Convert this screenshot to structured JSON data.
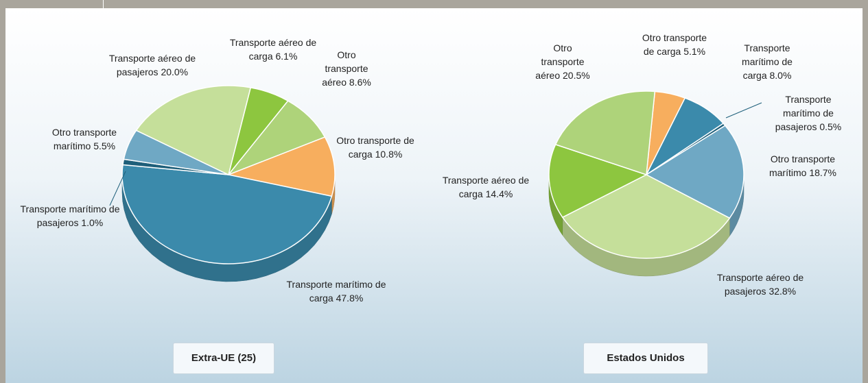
{
  "chart_data": [
    {
      "type": "pie",
      "title": "Extra-UE (25)",
      "categories": [
        "Transporte aéreo de carga",
        "Otro transporte aéreo",
        "Otro transporte de carga",
        "Transporte marítimo de carga",
        "Transporte marítimo de pasajeros",
        "Otro transporte marítimo",
        "Transporte aéreo de pasajeros"
      ],
      "values": [
        6.1,
        8.6,
        10.8,
        47.8,
        1.0,
        5.5,
        20.0
      ],
      "value_labels": [
        "6.1%",
        "8.6%",
        "10.8%",
        "47.8%",
        "1.0%",
        "5.5%",
        "20.0%"
      ],
      "colors": [
        "#8dc63f",
        "#aed37a",
        "#f7ae5e",
        "#3b8aab",
        "#1e5f7a",
        "#6fa8c4",
        "#c5df9a"
      ]
    },
    {
      "type": "pie",
      "title": "Estados Unidos",
      "categories": [
        "Otro transporte de carga",
        "Transporte marítimo de carga",
        "Transporte marítimo de pasajeros",
        "Otro transporte marítimo",
        "Transporte aéreo de pasajeros",
        "Transporte aéreo de carga",
        "Otro transporte aéreo"
      ],
      "values": [
        5.1,
        8.0,
        0.5,
        18.7,
        32.8,
        14.4,
        20.5
      ],
      "value_labels": [
        "5.1%",
        "8.0%",
        "0.5%",
        "18.7%",
        "32.8%",
        "14.4%",
        "20.5%"
      ],
      "colors": [
        "#f7ae5e",
        "#3b8aab",
        "#1e5f7a",
        "#6fa8c4",
        "#c5df9a",
        "#8dc63f",
        "#aed37a"
      ]
    }
  ]
}
